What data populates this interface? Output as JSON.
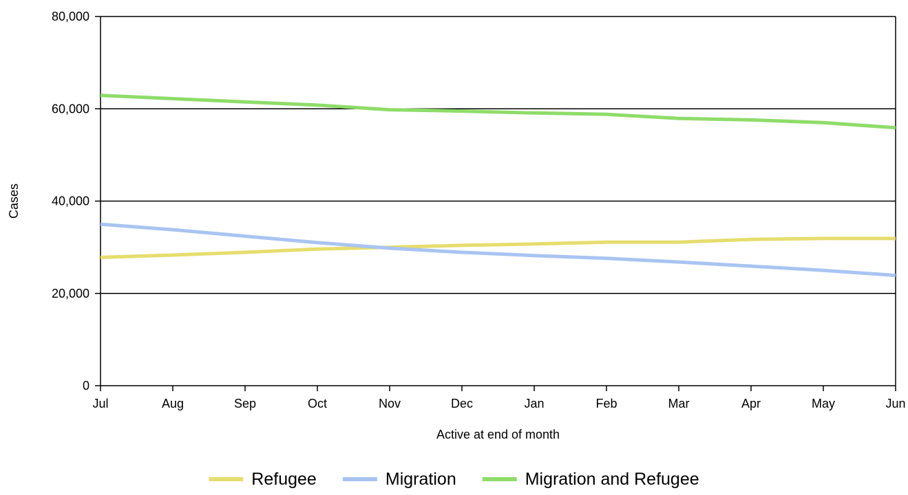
{
  "chart_data": {
    "type": "line",
    "xlabel": "Active at end of month",
    "ylabel": "Cases",
    "categories": [
      "Jul",
      "Aug",
      "Sep",
      "Oct",
      "Nov",
      "Dec",
      "Jan",
      "Feb",
      "Mar",
      "Apr",
      "May",
      "Jun"
    ],
    "ylim": [
      0,
      80000
    ],
    "yticks": [
      0,
      20000,
      40000,
      60000,
      80000
    ],
    "ytick_labels": [
      "0",
      "20,000",
      "40,000",
      "60,000",
      "80,000"
    ],
    "grid": true,
    "legend_position": "bottom",
    "series": [
      {
        "name": "Refugee",
        "color": "#e6dd6e",
        "values": [
          27800,
          28300,
          28900,
          29600,
          30000,
          30400,
          30700,
          31100,
          31100,
          31700,
          31900,
          31900
        ]
      },
      {
        "name": "Migration",
        "color": "#a9c4f2",
        "values": [
          35000,
          33800,
          32400,
          31000,
          29800,
          28900,
          28200,
          27600,
          26800,
          25900,
          25000,
          23900
        ]
      },
      {
        "name": "Migration and Refugee",
        "color": "#8fdc6a",
        "values": [
          62900,
          62200,
          61500,
          60800,
          59800,
          59500,
          59100,
          58800,
          57900,
          57600,
          57000,
          55900
        ]
      }
    ]
  }
}
